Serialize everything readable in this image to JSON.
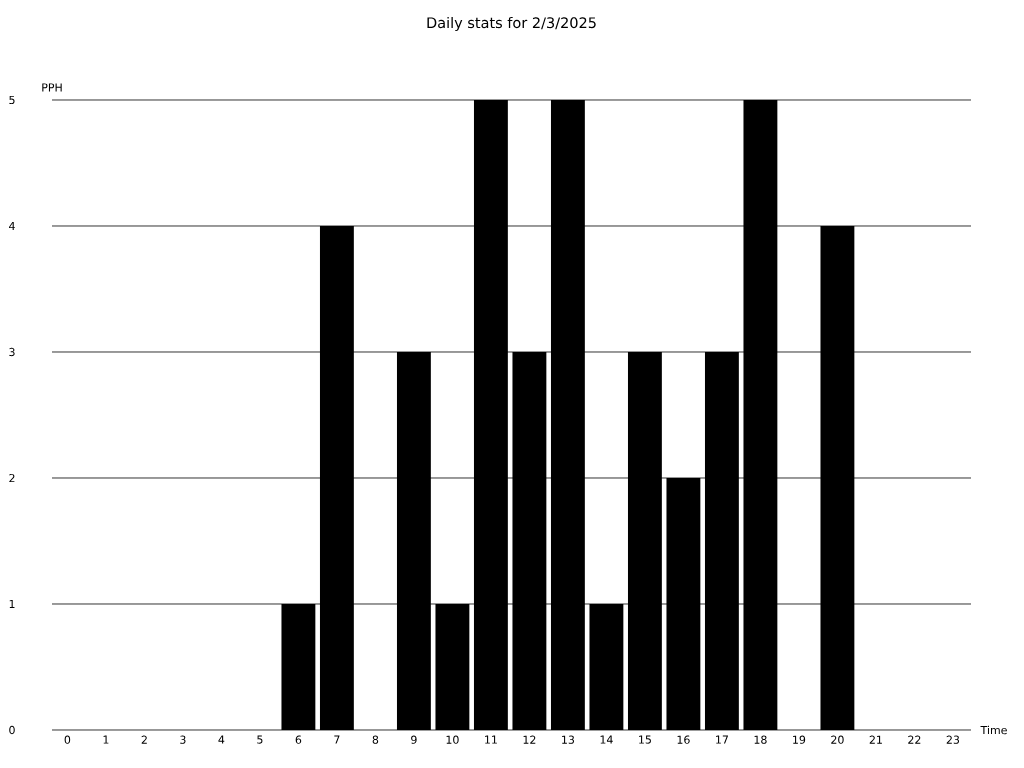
{
  "chart_data": {
    "type": "bar",
    "title": "Daily stats for 2/3/2025",
    "xlabel": "Time",
    "ylabel": "PPH",
    "categories": [
      "0",
      "1",
      "2",
      "3",
      "4",
      "5",
      "6",
      "7",
      "8",
      "9",
      "10",
      "11",
      "12",
      "13",
      "14",
      "15",
      "16",
      "17",
      "18",
      "19",
      "20",
      "21",
      "22",
      "23"
    ],
    "values": [
      0,
      0,
      0,
      0,
      0,
      0,
      1,
      4,
      0,
      3,
      1,
      5,
      3,
      5,
      1,
      3,
      2,
      3,
      5,
      0,
      4,
      0,
      0,
      0
    ],
    "color": "#000000",
    "ylim": [
      0,
      5
    ],
    "yticks": [
      0,
      1,
      2,
      3,
      4,
      5
    ],
    "grid": "y"
  }
}
